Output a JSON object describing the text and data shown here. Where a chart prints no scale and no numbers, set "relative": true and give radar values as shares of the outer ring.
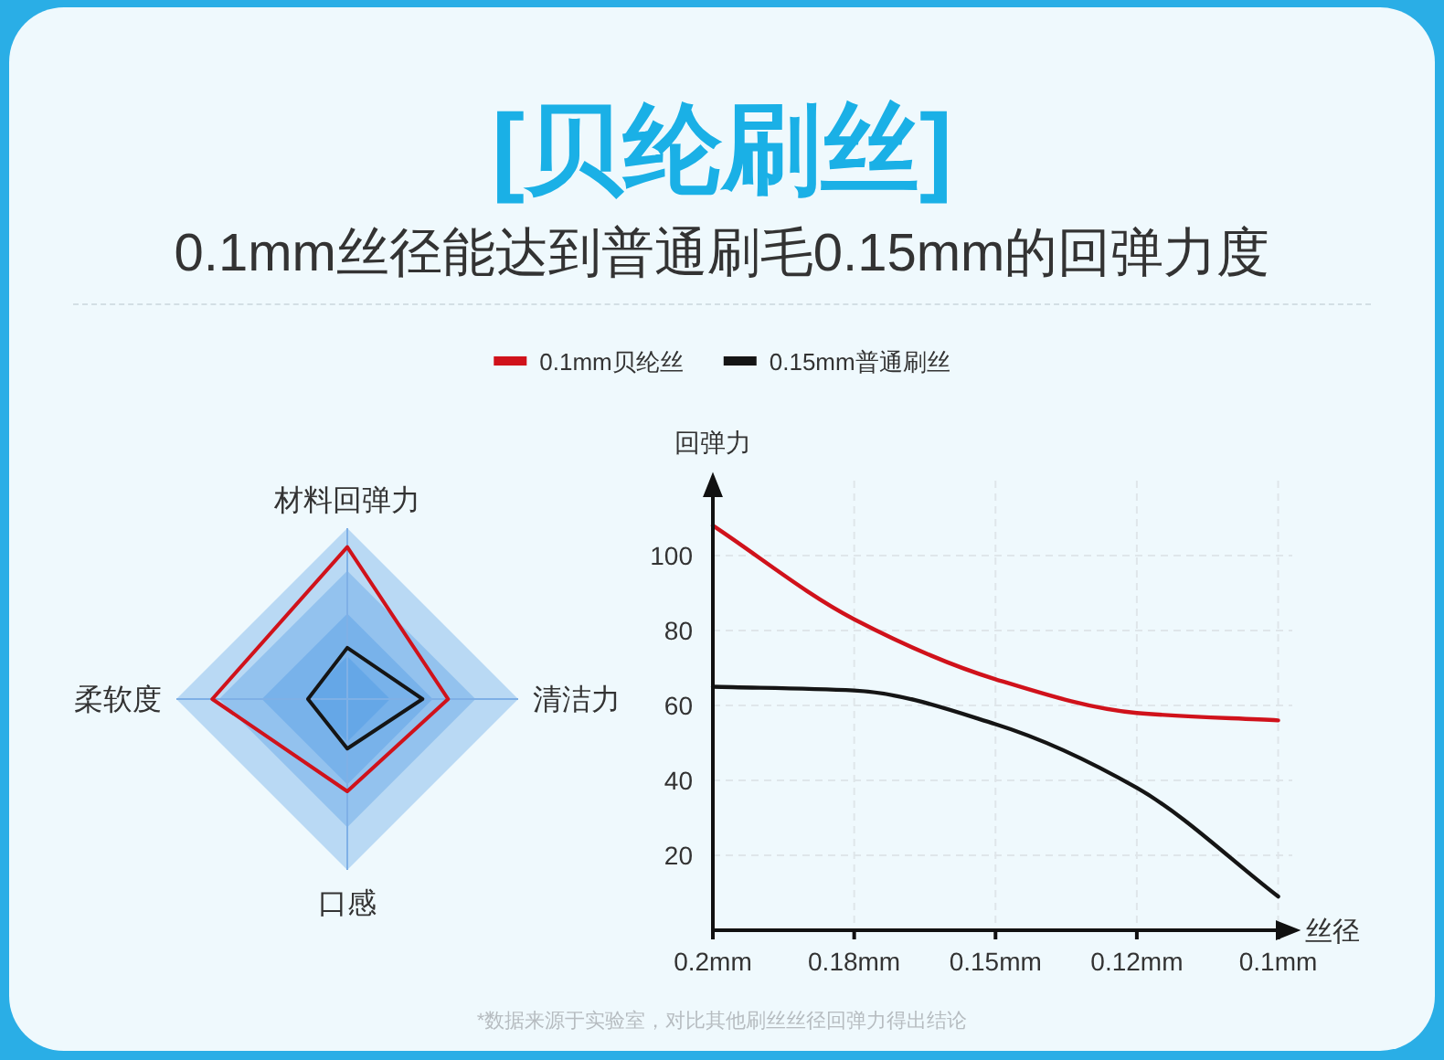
{
  "chart_data": [
    {
      "type": "radar",
      "subtitle": "0.1mm丝径能达到普通刷毛0.15mm的回弹力度",
      "categories": [
        "材料回弹力",
        "清洁力",
        "口感",
        "柔软度"
      ],
      "relative": true,
      "legend": "top",
      "line_style": "solid",
      "series": [
        {
          "name": "0.1mm贝纶丝",
          "color": "#d0121b",
          "values": [
            0.89,
            0.59,
            0.54,
            0.79
          ]
        },
        {
          "name": "0.15mm普通刷丝",
          "color": "#151515",
          "values": [
            0.3,
            0.44,
            0.29,
            0.23
          ]
        }
      ]
    },
    {
      "type": "line",
      "title": "[贝纶刷丝]",
      "xlabel": "丝径",
      "ylabel": "回弹力",
      "categories": [
        "0.2mm",
        "0.18mm",
        "0.15mm",
        "0.12mm",
        "0.1mm"
      ],
      "ylim": [
        0,
        120
      ],
      "yticks": [
        20,
        40,
        60,
        80,
        100
      ],
      "grid": true,
      "line_style": "solid",
      "series": [
        {
          "color": "#d0121b",
          "values": [
            108,
            83,
            67,
            58,
            56
          ]
        },
        {
          "color": "#151515",
          "values": [
            65,
            64,
            55,
            38,
            9
          ]
        }
      ],
      "annotations": [
        "*数据来源于实验室，对比其他刷丝丝径回弹力得出结论"
      ]
    }
  ]
}
